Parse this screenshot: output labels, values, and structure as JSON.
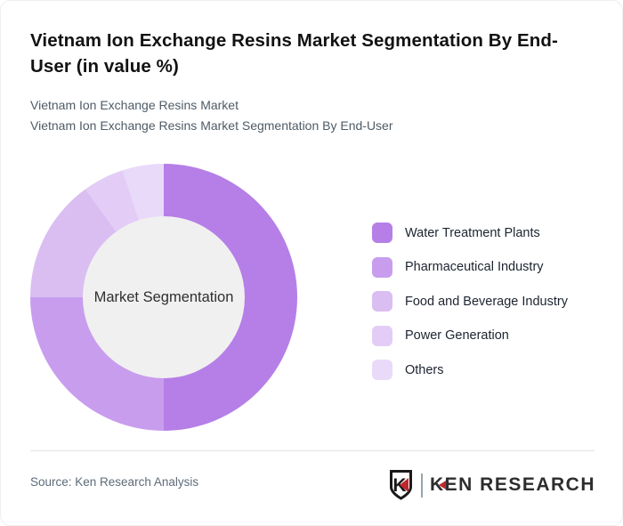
{
  "header": {
    "title": "Vietnam Ion Exchange Resins Market Segmentation By End-User (in value %)",
    "subtitle_line1": "Vietnam Ion Exchange Resins Market",
    "subtitle_line2": "Vietnam Ion Exchange Resins Market Segmentation By End-User"
  },
  "chart_data": {
    "type": "pie",
    "donut": true,
    "title": "Vietnam Ion Exchange Resins Market Segmentation By End-User (in value %)",
    "categories": [
      "Water Treatment Plants",
      "Pharmaceutical Industry",
      "Food and Beverage Industry",
      "Power Generation",
      "Others"
    ],
    "values": [
      50,
      25,
      15,
      5,
      5
    ],
    "unit": "%",
    "colors": [
      "#b57fe7",
      "#c89dee",
      "#dabef2",
      "#e3cdf6",
      "#e9dafa"
    ],
    "start_angle_deg": 0,
    "direction": "clockwise",
    "inner_radius_ratio": 0.6,
    "center_label": "Market Segmentation",
    "center_color": "#f0f0f0",
    "legend_position": "right"
  },
  "footer": {
    "source": "Source: Ken Research Analysis",
    "logo": {
      "shield_letter": "K",
      "wordmark_first_letter": "K",
      "wordmark_rest": "EN RESEARCH",
      "accent_color": "#c0272d"
    }
  }
}
